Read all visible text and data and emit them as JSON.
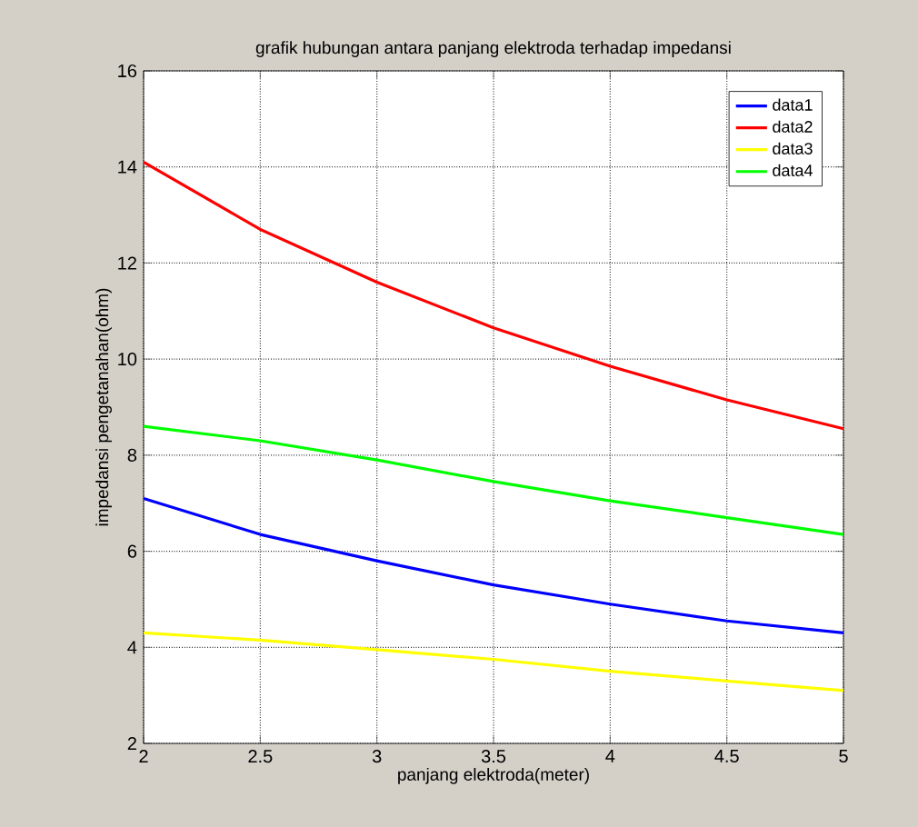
{
  "chart_data": {
    "type": "line",
    "title": "grafik hubungan antara panjang elektroda terhadap impedansi",
    "xlabel": "panjang elektroda(meter)",
    "ylabel": "impedansi pengetanahan(ohm)",
    "x": [
      2,
      2.5,
      3,
      3.5,
      4,
      4.5,
      5
    ],
    "series": [
      {
        "name": "data1",
        "color": "#0000ff",
        "values": [
          7.1,
          6.35,
          5.8,
          5.3,
          4.9,
          4.55,
          4.3
        ]
      },
      {
        "name": "data2",
        "color": "#ff0000",
        "values": [
          14.1,
          12.7,
          11.6,
          10.65,
          9.85,
          9.15,
          8.55
        ]
      },
      {
        "name": "data3",
        "color": "#ffff00",
        "values": [
          4.3,
          4.15,
          3.95,
          3.75,
          3.5,
          3.3,
          3.1
        ]
      },
      {
        "name": "data4",
        "color": "#00ff00",
        "values": [
          8.6,
          8.3,
          7.9,
          7.45,
          7.05,
          6.7,
          6.35
        ]
      }
    ],
    "xlim": [
      2,
      5
    ],
    "ylim": [
      2,
      16
    ],
    "xticks": [
      2,
      2.5,
      3,
      3.5,
      4,
      4.5,
      5
    ],
    "yticks": [
      2,
      4,
      6,
      8,
      10,
      12,
      14,
      16
    ],
    "grid": true,
    "legend": "top right",
    "marker": "none",
    "line_style": "solid"
  }
}
